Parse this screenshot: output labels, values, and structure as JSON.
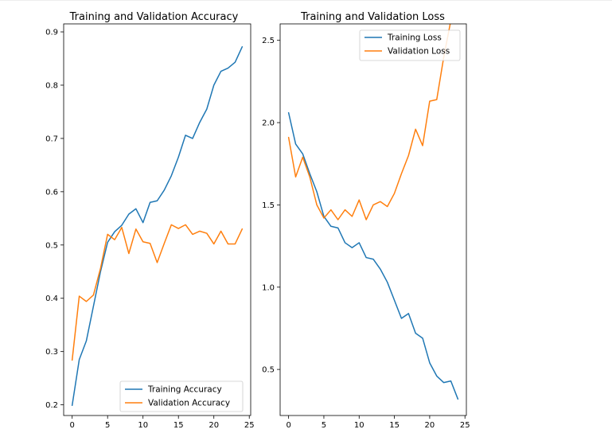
{
  "chart_data": [
    {
      "type": "line",
      "title": "Training and Validation Accuracy",
      "xlabel": "",
      "ylabel": "",
      "xlim": [
        -1.2,
        25.2
      ],
      "ylim": [
        0.18,
        0.915
      ],
      "xticks": [
        0,
        5,
        10,
        15,
        20,
        25
      ],
      "xtick_labels": [
        "0",
        "5",
        "10",
        "15",
        "20",
        "25"
      ],
      "yticks": [
        0.2,
        0.3,
        0.4,
        0.5,
        0.6,
        0.7,
        0.8,
        0.9
      ],
      "ytick_labels": [
        "0.2",
        "0.3",
        "0.4",
        "0.5",
        "0.6",
        "0.7",
        "0.8",
        "0.9"
      ],
      "legend_position": "lower-right",
      "grid": false,
      "x": [
        0,
        1,
        2,
        3,
        4,
        5,
        6,
        7,
        8,
        9,
        10,
        11,
        12,
        13,
        14,
        15,
        16,
        17,
        18,
        19,
        20,
        21,
        22,
        23,
        24
      ],
      "series": [
        {
          "name": "Training Accuracy",
          "color": "#1f77b4",
          "values": [
            0.199,
            0.285,
            0.32,
            0.385,
            0.45,
            0.505,
            0.525,
            0.537,
            0.558,
            0.568,
            0.542,
            0.58,
            0.583,
            0.603,
            0.63,
            0.665,
            0.706,
            0.7,
            0.73,
            0.755,
            0.8,
            0.826,
            0.832,
            0.843,
            0.872
          ]
        },
        {
          "name": "Validation Accuracy",
          "color": "#ff7f0e",
          "values": [
            0.284,
            0.404,
            0.394,
            0.406,
            0.456,
            0.52,
            0.51,
            0.533,
            0.484,
            0.53,
            0.506,
            0.503,
            0.467,
            0.503,
            0.538,
            0.531,
            0.538,
            0.52,
            0.526,
            0.522,
            0.502,
            0.526,
            0.502,
            0.502,
            0.53
          ]
        }
      ]
    },
    {
      "type": "line",
      "title": "Training and Validation Loss",
      "xlabel": "",
      "ylabel": "",
      "xlim": [
        -1.2,
        25.2
      ],
      "ylim": [
        0.22,
        2.6
      ],
      "xticks": [
        0,
        5,
        10,
        15,
        20,
        25
      ],
      "xtick_labels": [
        "0",
        "5",
        "10",
        "15",
        "20",
        "25"
      ],
      "yticks": [
        0.5,
        1.0,
        1.5,
        2.0,
        2.5
      ],
      "ytick_labels": [
        "0.5",
        "1.0",
        "1.5",
        "2.0",
        "2.5"
      ],
      "legend_position": "top-right",
      "grid": false,
      "x": [
        0,
        1,
        2,
        3,
        4,
        5,
        6,
        7,
        8,
        9,
        10,
        11,
        12,
        13,
        14,
        15,
        16,
        17,
        18,
        19,
        20,
        21,
        22,
        23,
        24
      ],
      "series": [
        {
          "name": "Training Loss",
          "color": "#1f77b4",
          "values": [
            2.06,
            1.87,
            1.81,
            1.69,
            1.58,
            1.43,
            1.37,
            1.36,
            1.27,
            1.24,
            1.27,
            1.18,
            1.17,
            1.11,
            1.03,
            0.92,
            0.81,
            0.84,
            0.72,
            0.69,
            0.54,
            0.46,
            0.42,
            0.43,
            0.32
          ]
        },
        {
          "name": "Validation Loss",
          "color": "#ff7f0e",
          "values": [
            1.91,
            1.67,
            1.79,
            1.67,
            1.5,
            1.42,
            1.47,
            1.41,
            1.47,
            1.43,
            1.53,
            1.41,
            1.5,
            1.52,
            1.49,
            1.57,
            1.69,
            1.8,
            1.96,
            1.86,
            2.13,
            2.14,
            2.4,
            2.62,
            2.7
          ]
        }
      ]
    }
  ]
}
